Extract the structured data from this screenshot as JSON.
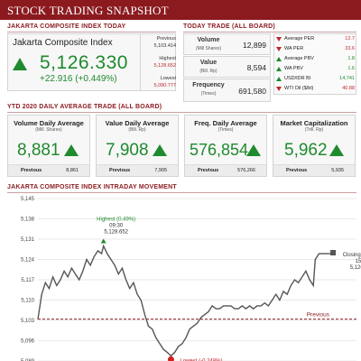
{
  "header": {
    "title": "STOCK TRADING SNAPSHOT"
  },
  "jci": {
    "section_title": "JAKARTA COMPOSITE INDEX TODAY",
    "name": "Jakarta Composite Index",
    "value": "5,126.330",
    "change": "+22.916 (+0.449%)",
    "previous_label": "Previous",
    "previous_value": "5,103.414",
    "highest_label": "Highest",
    "highest_value": "5,128.652",
    "lowest_label": "Lowest",
    "lowest_value": "5,090.777",
    "trend": "up"
  },
  "today_trade": {
    "section_title": "TODAY TRADE (ALL BOARD)",
    "rows": [
      {
        "label": "Volume",
        "sub": "(Mill Shares)",
        "value": "12,899"
      },
      {
        "label": "Value",
        "sub": "(Bill. Rp)",
        "value": "8,594"
      },
      {
        "label": "Frequency",
        "sub": "(Times)",
        "value": "691,580"
      }
    ],
    "indicators": [
      {
        "label": "Average PER",
        "value": "12.7",
        "dir": "down"
      },
      {
        "label": "WA PER",
        "value": "33.6",
        "dir": "down"
      },
      {
        "label": "Average PBV",
        "value": "1.8",
        "dir": "up"
      },
      {
        "label": "WA PBV",
        "value": "1.6",
        "dir": "up"
      },
      {
        "label": "USD/IDR BI",
        "value": "14,741",
        "dir": "up"
      },
      {
        "label": "WTI Oil ($/bl)",
        "value": "40.88",
        "dir": "down"
      }
    ]
  },
  "ytd": {
    "section_title": "YTD 2020 DAILY AVERAGE TRADE (ALL BOARD)",
    "previous_label": "Previous",
    "boxes": [
      {
        "title": "Volume Daily Average",
        "sub": "(Mill. Shares)",
        "value": "8,881",
        "previous": "8,861"
      },
      {
        "title": "Value Daily Average",
        "sub": "(Bill. Rp)",
        "value": "7,908",
        "previous": "7,905"
      },
      {
        "title": "Freq. Daily Average",
        "sub": "(Times)",
        "value": "576,854",
        "previous": "576,266"
      },
      {
        "title": "Market Capitalization",
        "sub": "(Trill. Rp)",
        "value": "5,962",
        "previous": "5,935"
      }
    ]
  },
  "chart_section_title": "JAKARTA COMPOSITE INDEX INTRADAY MOVEMENT",
  "chart_data": {
    "type": "line",
    "title": "",
    "xlabel": "",
    "ylabel": "",
    "ylim": [
      5089,
      5145
    ],
    "yticks": [
      5089,
      5096,
      5103,
      5110,
      5117,
      5124,
      5131,
      5138,
      5145
    ],
    "ytick_labels": [
      "5,089",
      "5,096",
      "5,103",
      "5,110",
      "5,117",
      "5,124",
      "5,131",
      "5,138",
      "5,145"
    ],
    "grid": true,
    "line_color": "#555555",
    "previous_value": 5103.414,
    "previous_label": "Previous",
    "previous_color": "#8b1a1f",
    "annotations": {
      "highest": {
        "label": "Highest (0.49%)",
        "time": "09:30",
        "value": "5,128.652",
        "t": 70,
        "v": 5128.652
      },
      "closing": {
        "label": "Closing (0.45%)",
        "time": "15:15",
        "value": "5,126.330",
        "t": 315,
        "v": 5126.33
      },
      "lowest": {
        "label": "Lowest (-0.248%)",
        "t": 142,
        "v": 5090.777
      }
    },
    "points": [
      [
        0,
        5103.4
      ],
      [
        4,
        5112
      ],
      [
        8,
        5116
      ],
      [
        12,
        5114
      ],
      [
        16,
        5118
      ],
      [
        20,
        5115
      ],
      [
        24,
        5117
      ],
      [
        28,
        5120
      ],
      [
        32,
        5118
      ],
      [
        36,
        5121
      ],
      [
        40,
        5119
      ],
      [
        44,
        5117
      ],
      [
        48,
        5120
      ],
      [
        52,
        5124
      ],
      [
        56,
        5122
      ],
      [
        60,
        5125
      ],
      [
        64,
        5127
      ],
      [
        68,
        5126
      ],
      [
        70,
        5128.65
      ],
      [
        74,
        5126
      ],
      [
        78,
        5124
      ],
      [
        82,
        5122
      ],
      [
        86,
        5119
      ],
      [
        90,
        5121
      ],
      [
        94,
        5117
      ],
      [
        98,
        5114
      ],
      [
        102,
        5116
      ],
      [
        106,
        5112
      ],
      [
        110,
        5110
      ],
      [
        114,
        5105
      ],
      [
        118,
        5101
      ],
      [
        122,
        5100
      ],
      [
        126,
        5097
      ],
      [
        130,
        5095
      ],
      [
        134,
        5093
      ],
      [
        138,
        5092
      ],
      [
        142,
        5090.78
      ],
      [
        146,
        5092
      ],
      [
        150,
        5094
      ],
      [
        154,
        5095
      ],
      [
        158,
        5097
      ],
      [
        162,
        5100
      ],
      [
        166,
        5101
      ],
      [
        170,
        5102
      ],
      [
        174,
        5104
      ],
      [
        178,
        5105
      ],
      [
        182,
        5106
      ],
      [
        186,
        5108
      ],
      [
        190,
        5107
      ],
      [
        194,
        5107
      ],
      [
        198,
        5108
      ],
      [
        202,
        5108
      ],
      [
        206,
        5108
      ],
      [
        210,
        5107
      ],
      [
        214,
        5107
      ],
      [
        218,
        5108
      ],
      [
        222,
        5107
      ],
      [
        226,
        5108
      ],
      [
        230,
        5107
      ],
      [
        234,
        5108
      ],
      [
        238,
        5108
      ],
      [
        242,
        5109
      ],
      [
        246,
        5108
      ],
      [
        250,
        5110
      ],
      [
        254,
        5112
      ],
      [
        258,
        5110
      ],
      [
        262,
        5113
      ],
      [
        266,
        5112
      ],
      [
        270,
        5115
      ],
      [
        274,
        5117
      ],
      [
        278,
        5116
      ],
      [
        282,
        5118
      ],
      [
        286,
        5120
      ],
      [
        290,
        5117
      ],
      [
        294,
        5115
      ],
      [
        296,
        5124
      ],
      [
        300,
        5126
      ],
      [
        304,
        5126
      ],
      [
        308,
        5126
      ],
      [
        312,
        5126
      ],
      [
        315,
        5126.33
      ]
    ]
  }
}
